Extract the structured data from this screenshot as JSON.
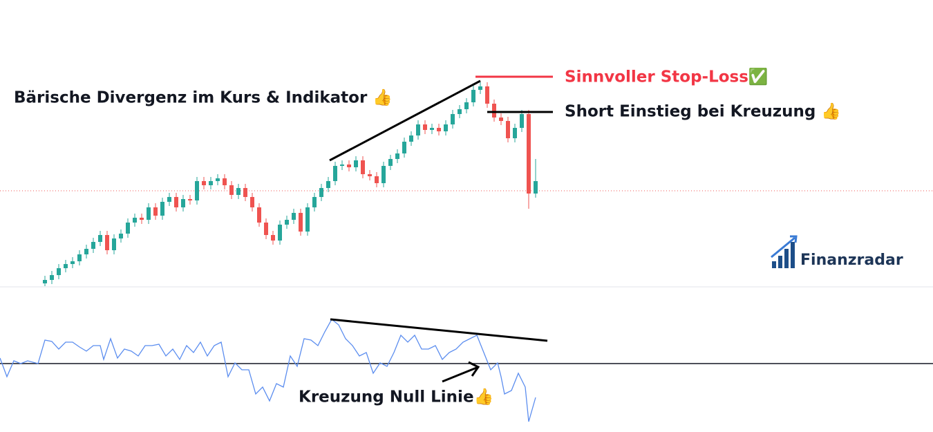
{
  "brand": "Finanzradar",
  "chart_data": [
    {
      "type": "candlestick",
      "annotations": [
        "Bärische Divergenz im Kurs & Indikator 👍",
        "Sinnvoller Stop-Loss✅",
        "Short Einstieg bei Kreuzung 👍"
      ],
      "up_color": "#26a69a",
      "down_color": "#ef5350",
      "ylim": [
        0,
        415
      ],
      "open": [
        5,
        10,
        17,
        27,
        33,
        37,
        47,
        55,
        65,
        75,
        53,
        70,
        77,
        93,
        100,
        97,
        115,
        103,
        123,
        130,
        115,
        127,
        125,
        153,
        147,
        153,
        157,
        147,
        133,
        143,
        130,
        115,
        93,
        75,
        67,
        90,
        97,
        107,
        80,
        115,
        130,
        143,
        153,
        175,
        177,
        173,
        183,
        163,
        160,
        150,
        175,
        185,
        193,
        210,
        219,
        235,
        227,
        230,
        225,
        235,
        250,
        257,
        267,
        285,
        290,
        265,
        245,
        240,
        215,
        230,
        250,
        135
      ],
      "high": [
        16,
        23,
        33,
        39,
        43,
        53,
        61,
        71,
        81,
        81,
        76,
        83,
        99,
        106,
        106,
        121,
        121,
        129,
        136,
        136,
        133,
        133,
        159,
        159,
        159,
        163,
        163,
        153,
        149,
        149,
        136,
        121,
        99,
        81,
        96,
        103,
        113,
        113,
        121,
        136,
        149,
        159,
        181,
        183,
        183,
        189,
        189,
        169,
        166,
        181,
        191,
        199,
        216,
        225,
        241,
        241,
        236,
        236,
        241,
        256,
        263,
        273,
        291,
        296,
        296,
        271,
        251,
        246,
        236,
        256,
        256,
        185
      ],
      "low": [
        1,
        4,
        11,
        21,
        27,
        31,
        41,
        49,
        59,
        47,
        47,
        64,
        71,
        87,
        91,
        91,
        97,
        97,
        117,
        109,
        109,
        119,
        119,
        141,
        141,
        147,
        141,
        127,
        127,
        124,
        109,
        87,
        69,
        61,
        61,
        84,
        91,
        74,
        74,
        109,
        124,
        137,
        147,
        169,
        167,
        167,
        157,
        154,
        144,
        144,
        169,
        179,
        187,
        204,
        213,
        221,
        221,
        219,
        219,
        229,
        244,
        251,
        261,
        279,
        259,
        239,
        234,
        209,
        209,
        224,
        113,
        129
      ],
      "close": [
        10,
        17,
        27,
        33,
        37,
        47,
        55,
        65,
        75,
        53,
        70,
        77,
        93,
        100,
        97,
        115,
        103,
        123,
        130,
        115,
        127,
        125,
        153,
        147,
        153,
        157,
        147,
        133,
        143,
        130,
        115,
        93,
        75,
        67,
        90,
        97,
        107,
        80,
        115,
        130,
        143,
        153,
        175,
        177,
        173,
        183,
        163,
        160,
        150,
        175,
        185,
        193,
        210,
        219,
        235,
        227,
        230,
        225,
        235,
        250,
        257,
        267,
        285,
        290,
        265,
        245,
        240,
        215,
        230,
        250,
        135,
        153
      ]
    },
    {
      "type": "line",
      "annotations": [
        "Kreuzung Null Linie👍"
      ],
      "color": "#5b8def",
      "xlim": [
        0,
        1350
      ],
      "ylim": [
        -99,
        111
      ],
      "x": [
        0,
        10,
        20,
        30,
        40,
        55,
        65,
        75,
        85,
        95,
        105,
        115,
        125,
        135,
        145,
        150,
        160,
        170,
        180,
        190,
        200,
        210,
        220,
        230,
        240,
        250,
        260,
        270,
        280,
        290,
        300,
        310,
        320,
        330,
        340,
        350,
        360,
        370,
        380,
        390,
        400,
        410,
        420,
        430,
        440,
        450,
        460,
        470,
        480,
        490,
        500,
        510,
        520,
        530,
        540,
        550,
        560,
        570,
        580,
        590,
        600,
        610,
        620,
        630,
        640,
        650,
        660,
        670,
        680,
        690,
        700,
        710,
        720,
        725,
        730,
        740,
        750,
        760,
        765,
        775
      ],
      "values": [
        8,
        -19,
        4,
        0,
        4,
        0,
        34,
        32,
        21,
        31,
        31,
        24,
        18,
        26,
        26,
        6,
        36,
        8,
        21,
        18,
        11,
        26,
        26,
        28,
        11,
        21,
        6,
        26,
        16,
        31,
        11,
        26,
        31,
        -19,
        1,
        -9,
        -9,
        -44,
        -34,
        -54,
        -29,
        -34,
        11,
        -4,
        36,
        34,
        26,
        46,
        64,
        56,
        36,
        26,
        11,
        16,
        -14,
        1,
        -4,
        16,
        41,
        31,
        41,
        21,
        21,
        26,
        6,
        16,
        21,
        31,
        36,
        41,
        16,
        -9,
        1,
        -19,
        -44,
        -39,
        -14,
        -34,
        -84,
        -49
      ]
    }
  ]
}
